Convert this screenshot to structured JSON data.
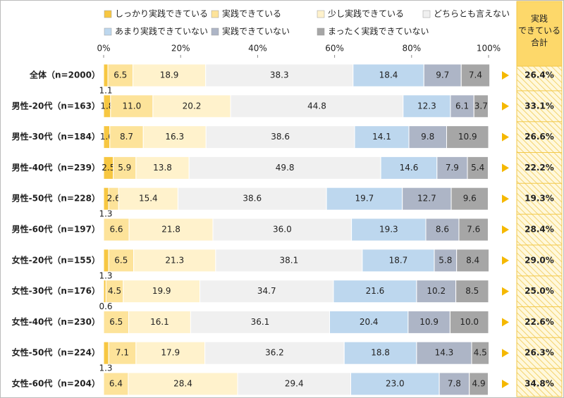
{
  "chart_data": {
    "type": "stacked-bar-horizontal",
    "categories": [
      "全体（n=2000）",
      "男性-20代（n=163）",
      "男性-30代（n=184）",
      "男性-40代（n=239）",
      "男性-50代（n=228）",
      "男性-60代（n=197）",
      "女性-20代（n=155）",
      "女性-30代（n=176）",
      "女性-40代（n=230）",
      "女性-50代（n=224）",
      "女性-60代（n=204）"
    ],
    "xlim": [
      0,
      100
    ],
    "xticks": [
      {
        "value": 0,
        "label": "0%"
      },
      {
        "value": 20,
        "label": "20%"
      },
      {
        "value": 40,
        "label": "40%"
      },
      {
        "value": 60,
        "label": "60%"
      },
      {
        "value": 80,
        "label": "80%"
      },
      {
        "value": 100,
        "label": "100%"
      }
    ],
    "series": [
      {
        "name": "しっかり実践できている",
        "color": "#f7c742",
        "values": [
          1.1,
          1.8,
          1.6,
          2.5,
          1.3,
          0,
          1.3,
          0.6,
          0,
          1.3,
          0
        ],
        "value_labels": [
          "1.1",
          "1.8",
          "1.6",
          "2.5",
          "1.3",
          null,
          "1.3",
          "0.6",
          null,
          "1.3",
          null
        ]
      },
      {
        "name": "実践できている",
        "color": "#fde39a",
        "values": [
          6.5,
          11.0,
          8.7,
          5.9,
          2.6,
          6.6,
          6.5,
          4.5,
          6.5,
          7.1,
          6.4
        ],
        "value_labels": [
          "6.5",
          "11.0",
          "8.7",
          "5.9",
          "2.6",
          "6.6",
          "6.5",
          "4.5",
          "6.5",
          "7.1",
          "6.4"
        ]
      },
      {
        "name": "少し実践できている",
        "color": "#fff2cc",
        "values": [
          18.9,
          20.2,
          16.3,
          13.8,
          15.4,
          21.8,
          21.3,
          19.9,
          16.1,
          17.9,
          28.4
        ],
        "value_labels": [
          "18.9",
          "20.2",
          "16.3",
          "13.8",
          "15.4",
          "21.8",
          "21.3",
          "19.9",
          "16.1",
          "17.9",
          "28.4"
        ]
      },
      {
        "name": "どちらとも言えない",
        "color": "#f0f0f0",
        "values": [
          38.3,
          44.8,
          38.6,
          49.8,
          38.6,
          36.0,
          38.1,
          34.7,
          36.1,
          36.2,
          29.4
        ],
        "value_labels": [
          "38.3",
          "44.8",
          "38.6",
          "49.8",
          "38.6",
          "36.0",
          "38.1",
          "34.7",
          "36.1",
          "36.2",
          "29.4"
        ]
      },
      {
        "name": "あまり実践できていない",
        "color": "#bdd7ee",
        "values": [
          18.4,
          12.3,
          14.1,
          14.6,
          19.7,
          19.3,
          18.7,
          21.6,
          20.4,
          18.8,
          23.0
        ],
        "value_labels": [
          "18.4",
          "12.3",
          "14.1",
          "14.6",
          "19.7",
          "19.3",
          "18.7",
          "21.6",
          "20.4",
          "18.8",
          "23.0"
        ]
      },
      {
        "name": "実践できていない",
        "color": "#adb5c6",
        "values": [
          9.7,
          6.1,
          9.8,
          7.9,
          12.7,
          8.6,
          5.8,
          10.2,
          10.9,
          14.3,
          7.8
        ],
        "value_labels": [
          "9.7",
          "6.1",
          "9.8",
          "7.9",
          "12.7",
          "8.6",
          "5.8",
          "10.2",
          "10.9",
          "14.3",
          "7.8"
        ]
      },
      {
        "name": "まったく実践できていない",
        "color": "#a6a6a6",
        "values": [
          7.4,
          3.7,
          10.9,
          5.4,
          9.6,
          7.6,
          8.4,
          8.5,
          10.0,
          4.5,
          4.9
        ],
        "value_labels": [
          "7.4",
          "3.7",
          "10.9",
          "5.4",
          "9.6",
          "7.6",
          "8.4",
          "8.5",
          "10.0",
          "4.5",
          "4.9"
        ]
      }
    ],
    "summary": {
      "title": [
        "実践",
        "できている",
        "合計"
      ],
      "values": [
        26.4,
        33.1,
        26.6,
        22.2,
        19.3,
        28.4,
        29.0,
        25.0,
        22.6,
        26.3,
        34.8
      ],
      "value_labels": [
        "26.4%",
        "33.1%",
        "26.6%",
        "22.2%",
        "19.3%",
        "28.4%",
        "29.0%",
        "25.0%",
        "22.6%",
        "26.3%",
        "34.8%"
      ],
      "color": "#fdd86a"
    }
  }
}
